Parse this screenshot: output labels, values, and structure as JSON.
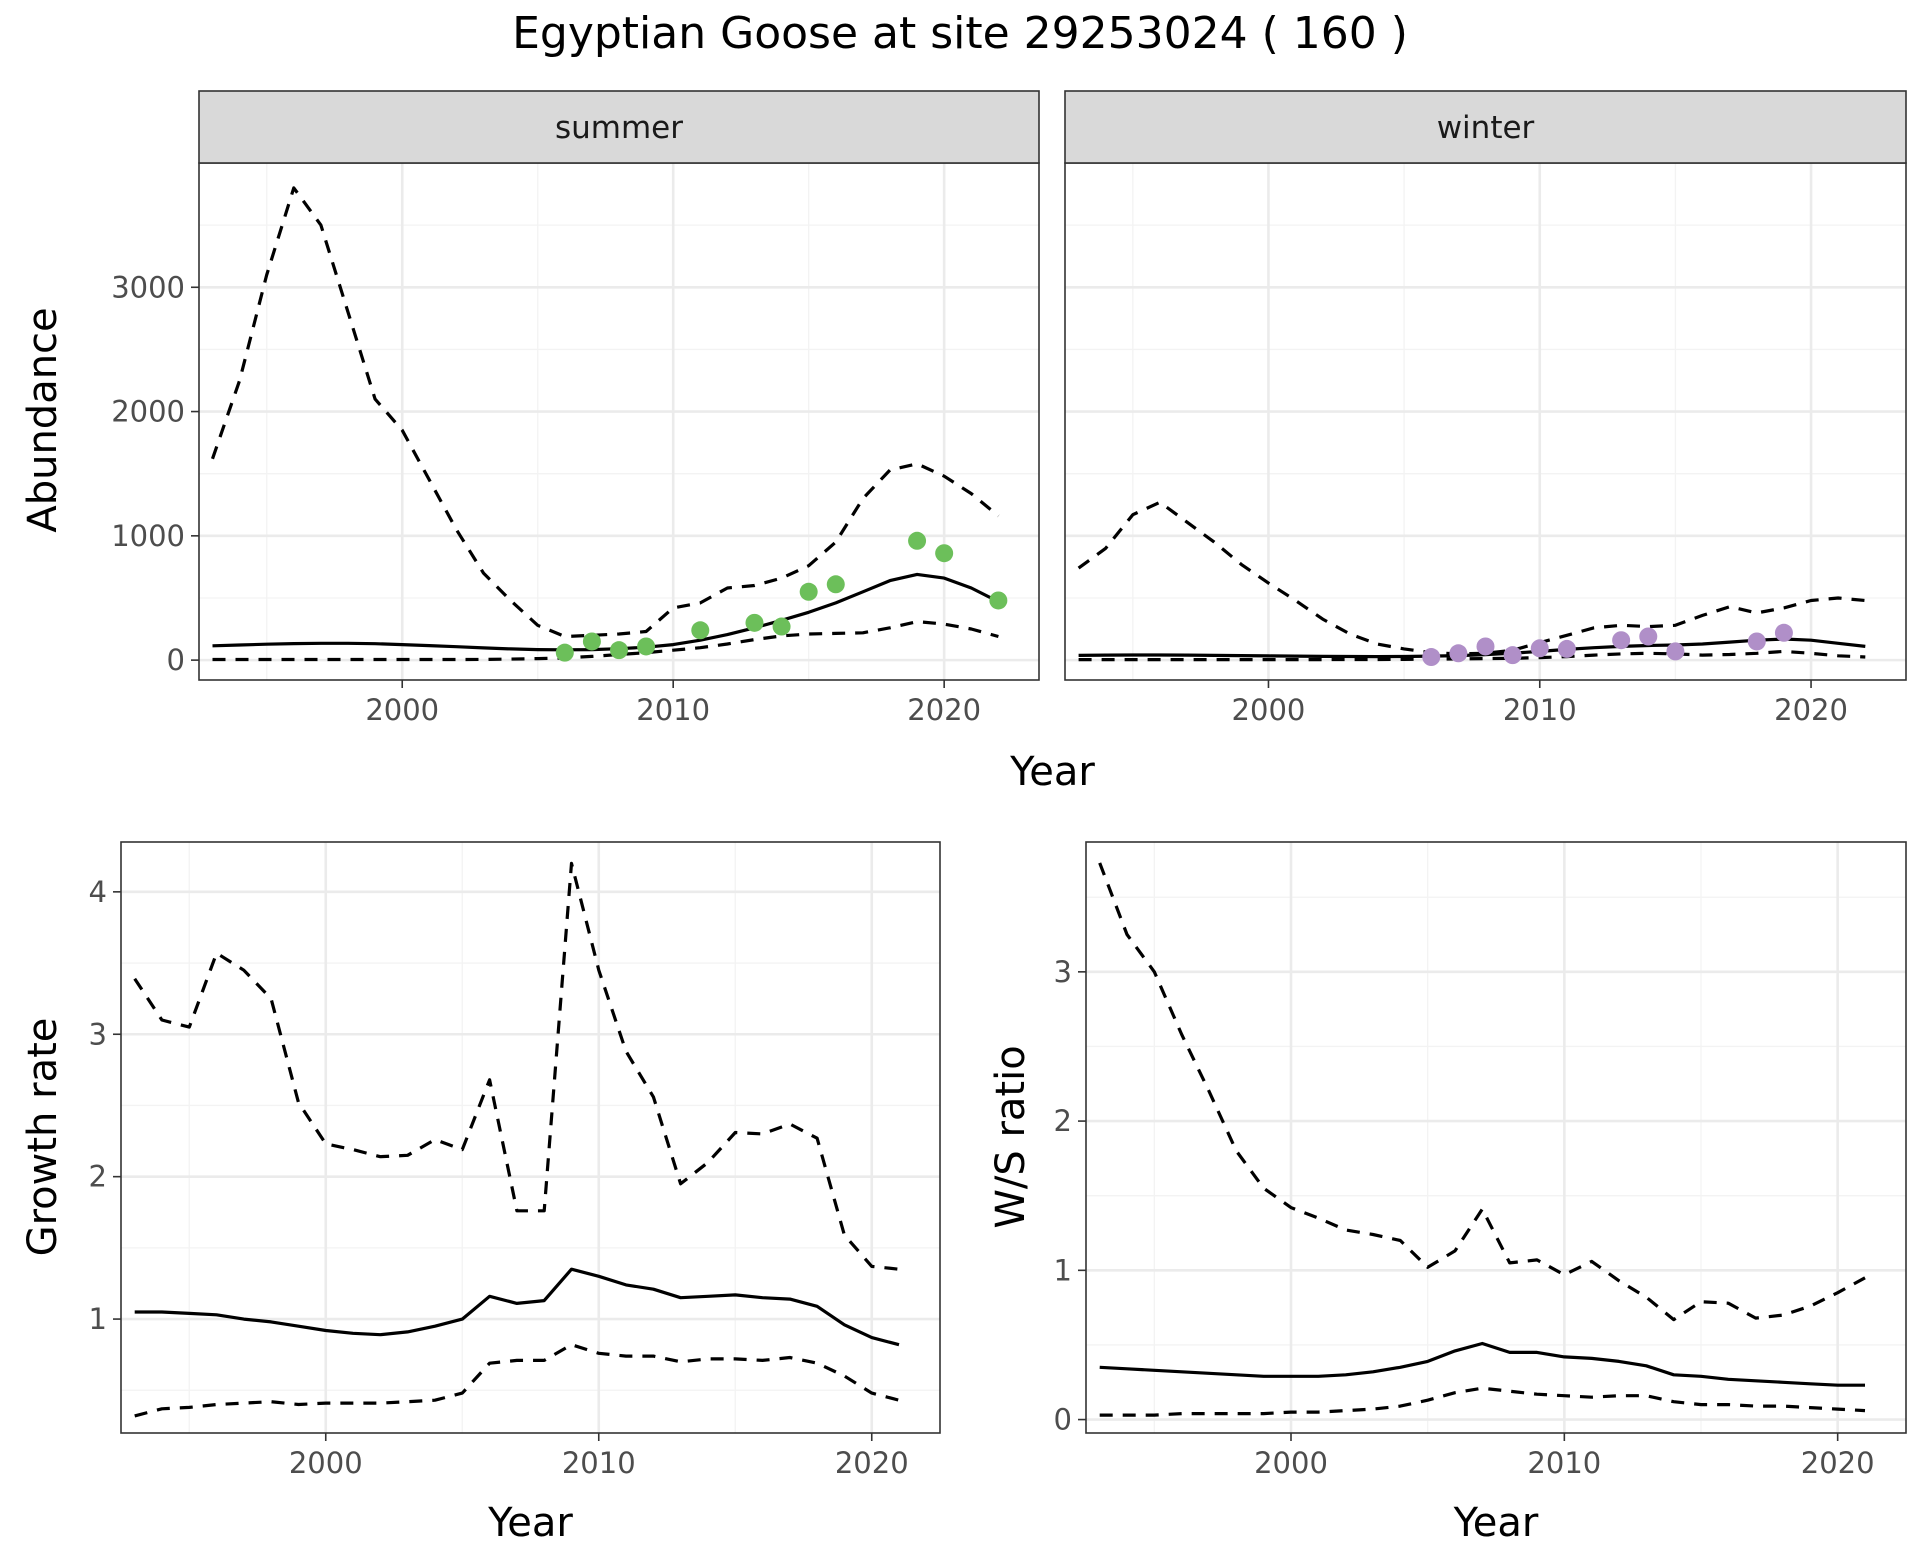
{
  "title": "Egyptian Goose at site 29253024 ( 160 )",
  "chart_data": [
    {
      "type": "line",
      "facet": "summer",
      "xlabel": "Year",
      "ylabel": "Abundance",
      "xlim": [
        1992.5,
        2023.5
      ],
      "ylim": [
        -160,
        4000
      ],
      "xticks": [
        2000,
        2010,
        2020
      ],
      "yticks": [
        0,
        1000,
        2000,
        3000
      ],
      "grid": true,
      "point_color": "#6cbf5a",
      "lines": [
        {
          "style": "dashed",
          "x": [
            1993,
            1994,
            1995,
            1996,
            1997,
            1998,
            1999,
            2000,
            2001,
            2002,
            2003,
            2004,
            2005,
            2006,
            2007,
            2008,
            2009,
            2010,
            2011,
            2012,
            2013,
            2014,
            2015,
            2016,
            2017,
            2018,
            2019,
            2020,
            2021,
            2022
          ],
          "y": [
            1620,
            2250,
            3100,
            3800,
            3500,
            2800,
            2100,
            1850,
            1450,
            1050,
            700,
            480,
            280,
            190,
            200,
            210,
            230,
            420,
            460,
            580,
            600,
            660,
            760,
            950,
            1300,
            1530,
            1580,
            1480,
            1340,
            1160
          ]
        },
        {
          "style": "solid",
          "x": [
            1993,
            1994,
            1995,
            1996,
            1997,
            1998,
            1999,
            2000,
            2001,
            2002,
            2003,
            2004,
            2005,
            2006,
            2007,
            2008,
            2009,
            2010,
            2011,
            2012,
            2013,
            2014,
            2015,
            2016,
            2017,
            2018,
            2019,
            2020,
            2021,
            2022
          ],
          "y": [
            115,
            122,
            128,
            133,
            135,
            135,
            132,
            125,
            117,
            108,
            98,
            90,
            85,
            83,
            85,
            92,
            104,
            125,
            160,
            205,
            260,
            320,
            385,
            460,
            550,
            640,
            690,
            660,
            580,
            470
          ]
        },
        {
          "style": "dashed",
          "x": [
            1993,
            1994,
            1995,
            1996,
            1997,
            1998,
            1999,
            2000,
            2001,
            2002,
            2003,
            2004,
            2005,
            2006,
            2007,
            2008,
            2009,
            2010,
            2011,
            2012,
            2013,
            2014,
            2015,
            2016,
            2017,
            2018,
            2019,
            2020,
            2021,
            2022
          ],
          "y": [
            5,
            5,
            5,
            5,
            5,
            5,
            5,
            5,
            5,
            5,
            6,
            8,
            12,
            18,
            30,
            45,
            60,
            80,
            100,
            130,
            165,
            195,
            210,
            215,
            220,
            260,
            310,
            290,
            250,
            190
          ]
        }
      ],
      "points": {
        "x": [
          2006,
          2007,
          2008,
          2009,
          2011,
          2013,
          2014,
          2015,
          2016,
          2019,
          2020,
          2022
        ],
        "y": [
          60,
          150,
          80,
          110,
          240,
          300,
          270,
          550,
          610,
          960,
          860,
          480
        ]
      }
    },
    {
      "type": "line",
      "facet": "winter",
      "xlabel": "Year",
      "ylabel": "",
      "xlim": [
        1992.5,
        2023.5
      ],
      "ylim": [
        -160,
        4000
      ],
      "xticks": [
        2000,
        2010,
        2020
      ],
      "yticks": [
        0,
        1000,
        2000,
        3000
      ],
      "grid": true,
      "point_color": "#b08fc8",
      "lines": [
        {
          "style": "dashed",
          "x": [
            1993,
            1994,
            1995,
            1996,
            1997,
            1998,
            1999,
            2000,
            2001,
            2002,
            2003,
            2004,
            2005,
            2006,
            2007,
            2008,
            2009,
            2010,
            2011,
            2012,
            2013,
            2014,
            2015,
            2016,
            2017,
            2018,
            2019,
            2020,
            2021,
            2022
          ],
          "y": [
            740,
            900,
            1170,
            1270,
            1110,
            950,
            770,
            620,
            480,
            330,
            210,
            130,
            90,
            60,
            50,
            55,
            80,
            140,
            200,
            260,
            280,
            270,
            280,
            360,
            430,
            380,
            420,
            480,
            500,
            480
          ]
        },
        {
          "style": "solid",
          "x": [
            1993,
            1994,
            1995,
            1996,
            1997,
            1998,
            1999,
            2000,
            2001,
            2002,
            2003,
            2004,
            2005,
            2006,
            2007,
            2008,
            2009,
            2010,
            2011,
            2012,
            2013,
            2014,
            2015,
            2016,
            2017,
            2018,
            2019,
            2020,
            2021,
            2022
          ],
          "y": [
            38,
            40,
            41,
            41,
            40,
            38,
            36,
            34,
            32,
            30,
            29,
            28,
            29,
            32,
            36,
            44,
            56,
            70,
            86,
            100,
            110,
            118,
            122,
            130,
            145,
            160,
            170,
            160,
            135,
            110
          ]
        },
        {
          "style": "dashed",
          "x": [
            1993,
            1994,
            1995,
            1996,
            1997,
            1998,
            1999,
            2000,
            2001,
            2002,
            2003,
            2004,
            2005,
            2006,
            2007,
            2008,
            2009,
            2010,
            2011,
            2012,
            2013,
            2014,
            2015,
            2016,
            2017,
            2018,
            2019,
            2020,
            2021,
            2022
          ],
          "y": [
            4,
            4,
            4,
            4,
            4,
            4,
            4,
            4,
            4,
            4,
            5,
            5,
            6,
            8,
            10,
            12,
            15,
            20,
            28,
            40,
            50,
            55,
            50,
            40,
            45,
            55,
            70,
            55,
            35,
            25
          ]
        }
      ],
      "points": {
        "x": [
          2006,
          2007,
          2008,
          2009,
          2010,
          2011,
          2013,
          2014,
          2015,
          2018,
          2019
        ],
        "y": [
          25,
          55,
          110,
          40,
          95,
          90,
          160,
          190,
          70,
          150,
          220
        ]
      }
    },
    {
      "type": "line",
      "xlabel": "Year",
      "ylabel": "Growth rate",
      "xlim": [
        1992.5,
        2022.5
      ],
      "ylim": [
        0.2,
        4.35
      ],
      "xticks": [
        2000,
        2010,
        2020
      ],
      "yticks": [
        1,
        2,
        3,
        4
      ],
      "grid": true,
      "lines": [
        {
          "style": "dashed",
          "x": [
            1993,
            1994,
            1995,
            1996,
            1997,
            1998,
            1999,
            2000,
            2001,
            2002,
            2003,
            2004,
            2005,
            2006,
            2007,
            2008,
            2009,
            2010,
            2011,
            2012,
            2013,
            2014,
            2015,
            2016,
            2017,
            2018,
            2019,
            2020,
            2021
          ],
          "y": [
            3.39,
            3.1,
            3.05,
            3.57,
            3.45,
            3.25,
            2.52,
            2.23,
            2.19,
            2.14,
            2.15,
            2.26,
            2.19,
            2.68,
            1.76,
            1.76,
            4.2,
            3.45,
            2.88,
            2.56,
            1.95,
            2.1,
            2.31,
            2.3,
            2.37,
            2.27,
            1.59,
            1.37,
            1.35
          ]
        },
        {
          "style": "solid",
          "x": [
            1993,
            1994,
            1995,
            1996,
            1997,
            1998,
            1999,
            2000,
            2001,
            2002,
            2003,
            2004,
            2005,
            2006,
            2007,
            2008,
            2009,
            2010,
            2011,
            2012,
            2013,
            2014,
            2015,
            2016,
            2017,
            2018,
            2019,
            2020,
            2021
          ],
          "y": [
            1.05,
            1.05,
            1.04,
            1.03,
            1.0,
            0.98,
            0.95,
            0.92,
            0.9,
            0.89,
            0.91,
            0.95,
            1.0,
            1.16,
            1.11,
            1.13,
            1.35,
            1.3,
            1.24,
            1.21,
            1.15,
            1.16,
            1.17,
            1.15,
            1.14,
            1.09,
            0.96,
            0.87,
            0.82
          ]
        },
        {
          "style": "dashed",
          "x": [
            1993,
            1994,
            1995,
            1996,
            1997,
            1998,
            1999,
            2000,
            2001,
            2002,
            2003,
            2004,
            2005,
            2006,
            2007,
            2008,
            2009,
            2010,
            2011,
            2012,
            2013,
            2014,
            2015,
            2016,
            2017,
            2018,
            2019,
            2020,
            2021
          ],
          "y": [
            0.32,
            0.37,
            0.38,
            0.4,
            0.41,
            0.42,
            0.4,
            0.41,
            0.41,
            0.41,
            0.42,
            0.43,
            0.48,
            0.69,
            0.71,
            0.71,
            0.82,
            0.76,
            0.74,
            0.74,
            0.7,
            0.72,
            0.72,
            0.71,
            0.73,
            0.69,
            0.6,
            0.48,
            0.43
          ]
        }
      ]
    },
    {
      "type": "line",
      "xlabel": "Year",
      "ylabel": "W/S ratio",
      "xlim": [
        1992.5,
        2022.5
      ],
      "ylim": [
        -0.09,
        3.87
      ],
      "xticks": [
        2000,
        2010,
        2020
      ],
      "yticks": [
        0,
        1,
        2,
        3
      ],
      "grid": true,
      "lines": [
        {
          "style": "dashed",
          "x": [
            1993,
            1994,
            1995,
            1996,
            1997,
            1998,
            1999,
            2000,
            2001,
            2002,
            2003,
            2004,
            2005,
            2006,
            2007,
            2008,
            2009,
            2010,
            2011,
            2012,
            2013,
            2014,
            2015,
            2016,
            2017,
            2018,
            2019,
            2020,
            2021
          ],
          "y": [
            3.73,
            3.25,
            3.0,
            2.58,
            2.2,
            1.8,
            1.55,
            1.42,
            1.35,
            1.27,
            1.24,
            1.2,
            1.02,
            1.13,
            1.41,
            1.05,
            1.07,
            0.97,
            1.06,
            0.93,
            0.82,
            0.67,
            0.79,
            0.78,
            0.68,
            0.7,
            0.76,
            0.85,
            0.95
          ]
        },
        {
          "style": "solid",
          "x": [
            1993,
            1994,
            1995,
            1996,
            1997,
            1998,
            1999,
            2000,
            2001,
            2002,
            2003,
            2004,
            2005,
            2006,
            2007,
            2008,
            2009,
            2010,
            2011,
            2012,
            2013,
            2014,
            2015,
            2016,
            2017,
            2018,
            2019,
            2020,
            2021
          ],
          "y": [
            0.35,
            0.34,
            0.33,
            0.32,
            0.31,
            0.3,
            0.29,
            0.29,
            0.29,
            0.3,
            0.32,
            0.35,
            0.39,
            0.46,
            0.51,
            0.45,
            0.45,
            0.42,
            0.41,
            0.39,
            0.36,
            0.3,
            0.29,
            0.27,
            0.26,
            0.25,
            0.24,
            0.23,
            0.23
          ]
        },
        {
          "style": "dashed",
          "x": [
            1993,
            1994,
            1995,
            1996,
            1997,
            1998,
            1999,
            2000,
            2001,
            2002,
            2003,
            2004,
            2005,
            2006,
            2007,
            2008,
            2009,
            2010,
            2011,
            2012,
            2013,
            2014,
            2015,
            2016,
            2017,
            2018,
            2019,
            2020,
            2021
          ],
          "y": [
            0.03,
            0.03,
            0.03,
            0.04,
            0.04,
            0.04,
            0.04,
            0.05,
            0.05,
            0.06,
            0.07,
            0.09,
            0.13,
            0.18,
            0.21,
            0.19,
            0.17,
            0.16,
            0.15,
            0.16,
            0.16,
            0.12,
            0.1,
            0.1,
            0.09,
            0.09,
            0.08,
            0.07,
            0.06
          ]
        }
      ]
    }
  ]
}
